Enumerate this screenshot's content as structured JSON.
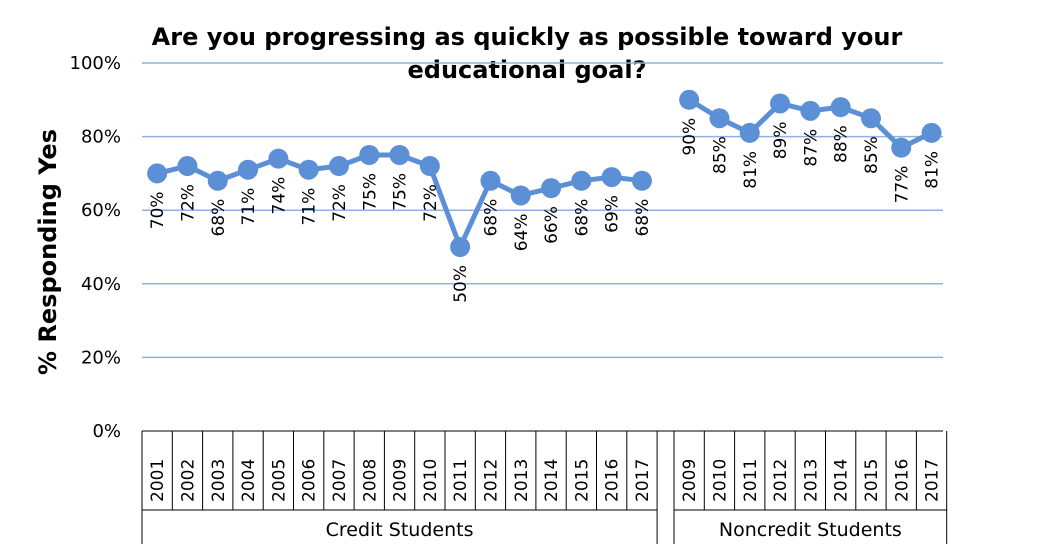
{
  "chart_data": {
    "type": "line",
    "title_line1": "Are you progressing as quickly as possible toward your",
    "title_line2": "educational goal?",
    "ylabel": "% Responding Yes",
    "xlabel": "",
    "ylim": [
      0,
      100
    ],
    "yticks": [
      "0%",
      "20%",
      "40%",
      "60%",
      "80%",
      "100%"
    ],
    "grid": true,
    "legend": "none",
    "line_color": "#5b8fd6",
    "grid_color": "#8fb1e0",
    "groups": [
      {
        "label": "Credit Students",
        "categories": [
          "2001",
          "2002",
          "2003",
          "2004",
          "2005",
          "2006",
          "2007",
          "2008",
          "2009",
          "2010",
          "2011",
          "2012",
          "2013",
          "2014",
          "2015",
          "2016",
          "2017"
        ],
        "values": [
          70,
          72,
          68,
          71,
          74,
          71,
          72,
          75,
          75,
          72,
          50,
          68,
          64,
          66,
          68,
          69,
          68
        ],
        "labels": [
          "70%",
          "72%",
          "68%",
          "71%",
          "74%",
          "71%",
          "72%",
          "75%",
          "75%",
          "72%",
          "50%",
          "68%",
          "64%",
          "66%",
          "68%",
          "69%",
          "68%"
        ]
      },
      {
        "label": "Noncredit Students",
        "categories": [
          "2009",
          "2010",
          "2011",
          "2012",
          "2013",
          "2014",
          "2015",
          "2016",
          "2017"
        ],
        "values": [
          90,
          85,
          81,
          89,
          87,
          88,
          85,
          77,
          81
        ],
        "labels": [
          "90%",
          "85%",
          "81%",
          "89%",
          "87%",
          "88%",
          "85%",
          "77%",
          "81%"
        ]
      }
    ]
  }
}
